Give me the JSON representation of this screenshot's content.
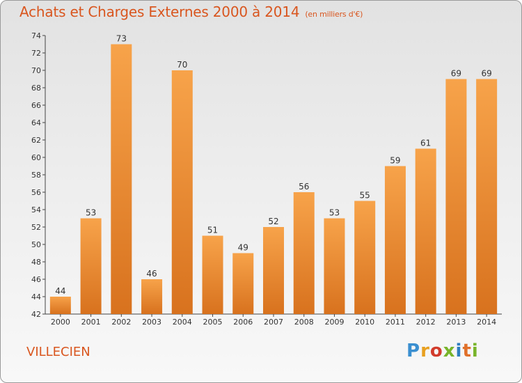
{
  "header": {
    "title": "Achats et Charges Externes 2000 à 2014",
    "unit": "(en milliers d'€)"
  },
  "footer": {
    "commune": "VILLECIEN",
    "logo_text": "Proxiti"
  },
  "colors": {
    "bar_light": "#f7a34a",
    "bar_dark": "#d8721e",
    "title": "#d9561f"
  },
  "chart_data": {
    "type": "bar",
    "title": "Achats et Charges Externes 2000 à 2014",
    "subtitle": "(en milliers d'€)",
    "xlabel": "",
    "ylabel": "",
    "categories": [
      "2000",
      "2001",
      "2002",
      "2003",
      "2004",
      "2005",
      "2006",
      "2007",
      "2008",
      "2009",
      "2010",
      "2011",
      "2012",
      "2013",
      "2014"
    ],
    "values": [
      44,
      53,
      73,
      46,
      70,
      51,
      49,
      52,
      56,
      53,
      55,
      59,
      61,
      69,
      69
    ],
    "ylim": [
      42,
      74
    ],
    "yticks": [
      42,
      44,
      46,
      48,
      50,
      52,
      54,
      56,
      58,
      60,
      62,
      64,
      66,
      68,
      70,
      72,
      74
    ],
    "grid": false,
    "legend": "none"
  }
}
